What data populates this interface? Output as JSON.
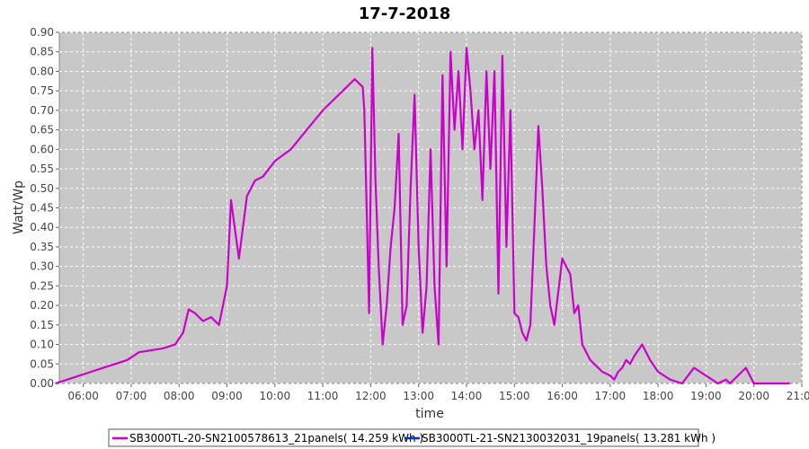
{
  "chart_data": {
    "type": "line",
    "title": "17-7-2018",
    "xlabel": "time",
    "ylabel": "Watt/Wp",
    "xlim": [
      "05:30",
      "21:00"
    ],
    "ylim": [
      0,
      0.9
    ],
    "x_ticks": [
      "06:00",
      "07:00",
      "08:00",
      "09:00",
      "10:00",
      "11:00",
      "12:00",
      "13:00",
      "14:00",
      "15:00",
      "16:00",
      "17:00",
      "18:00",
      "19:00",
      "20:00",
      "21:00"
    ],
    "y_ticks": [
      "0.00",
      "0.05",
      "0.10",
      "0.15",
      "0.20",
      "0.25",
      "0.30",
      "0.35",
      "0.40",
      "0.45",
      "0.50",
      "0.55",
      "0.60",
      "0.65",
      "0.70",
      "0.75",
      "0.80",
      "0.85",
      "0.90"
    ],
    "grid": true,
    "legend_position": "bottom",
    "background_color": "#c8c8c8",
    "series": [
      {
        "name": "SB3000TL-20-SN2100578613_21panels( 14.259 kWh )",
        "color": "#cc00cc",
        "x": [
          "05:25",
          "05:40",
          "05:55",
          "06:10",
          "06:25",
          "06:40",
          "06:55",
          "07:10",
          "07:25",
          "07:40",
          "07:55",
          "08:05",
          "08:12",
          "08:20",
          "08:30",
          "08:40",
          "08:50",
          "09:00",
          "09:05",
          "09:15",
          "09:25",
          "09:35",
          "09:45",
          "10:00",
          "10:20",
          "10:40",
          "11:00",
          "11:20",
          "11:40",
          "11:50",
          "11:52",
          "11:55",
          "11:58",
          "12:02",
          "12:06",
          "12:10",
          "12:15",
          "12:20",
          "12:25",
          "12:30",
          "12:35",
          "12:40",
          "12:45",
          "12:50",
          "12:55",
          "13:00",
          "13:05",
          "13:10",
          "13:15",
          "13:20",
          "13:25",
          "13:30",
          "13:35",
          "13:40",
          "13:45",
          "13:50",
          "13:55",
          "14:00",
          "14:05",
          "14:10",
          "14:15",
          "14:20",
          "14:25",
          "14:30",
          "14:35",
          "14:40",
          "14:45",
          "14:50",
          "14:55",
          "15:00",
          "15:05",
          "15:10",
          "15:15",
          "15:20",
          "15:25",
          "15:30",
          "15:35",
          "15:40",
          "15:45",
          "15:50",
          "16:00",
          "16:10",
          "16:15",
          "16:20",
          "16:25",
          "16:30",
          "16:35",
          "16:40",
          "16:50",
          "17:00",
          "17:05",
          "17:10",
          "17:15",
          "17:20",
          "17:25",
          "17:30",
          "17:40",
          "17:50",
          "18:00",
          "18:15",
          "18:30",
          "18:45",
          "19:00",
          "19:15",
          "19:25",
          "19:30",
          "19:40",
          "19:50",
          "20:00",
          "20:10",
          "20:20",
          "20:30",
          "20:35",
          "20:40",
          "20:45"
        ],
        "y": [
          0.0,
          0.01,
          0.02,
          0.03,
          0.04,
          0.05,
          0.06,
          0.08,
          0.085,
          0.09,
          0.1,
          0.13,
          0.19,
          0.18,
          0.16,
          0.17,
          0.15,
          0.25,
          0.47,
          0.32,
          0.48,
          0.52,
          0.53,
          0.57,
          0.6,
          0.65,
          0.7,
          0.74,
          0.78,
          0.76,
          0.7,
          0.45,
          0.18,
          0.86,
          0.52,
          0.3,
          0.1,
          0.2,
          0.35,
          0.45,
          0.64,
          0.15,
          0.2,
          0.5,
          0.74,
          0.35,
          0.13,
          0.25,
          0.6,
          0.25,
          0.1,
          0.79,
          0.3,
          0.85,
          0.65,
          0.8,
          0.6,
          0.86,
          0.75,
          0.6,
          0.7,
          0.47,
          0.8,
          0.55,
          0.8,
          0.23,
          0.84,
          0.35,
          0.7,
          0.18,
          0.17,
          0.13,
          0.11,
          0.15,
          0.4,
          0.66,
          0.5,
          0.3,
          0.2,
          0.15,
          0.32,
          0.28,
          0.18,
          0.2,
          0.1,
          0.08,
          0.06,
          0.05,
          0.03,
          0.02,
          0.01,
          0.03,
          0.04,
          0.06,
          0.05,
          0.07,
          0.1,
          0.06,
          0.03,
          0.01,
          0.0,
          0.04,
          0.02,
          0.0,
          0.01,
          0.0,
          0.02,
          0.04,
          0.0,
          0.0,
          0.0,
          0.0,
          0.0,
          0.0,
          0.0
        ],
        "_": "placeholder"
      },
      {
        "name": "SB3000TL-21-SN2130032031_19panels( 13.281 kWh )",
        "color": "#0033cc"
      }
    ]
  },
  "legend": {
    "series_1_label": "SB3000TL-20-SN2100578613_21panels( 14.259 kWh )",
    "series_2_label": "SB3000TL-21-SN2130032031_19panels( 13.281 kWh )"
  }
}
